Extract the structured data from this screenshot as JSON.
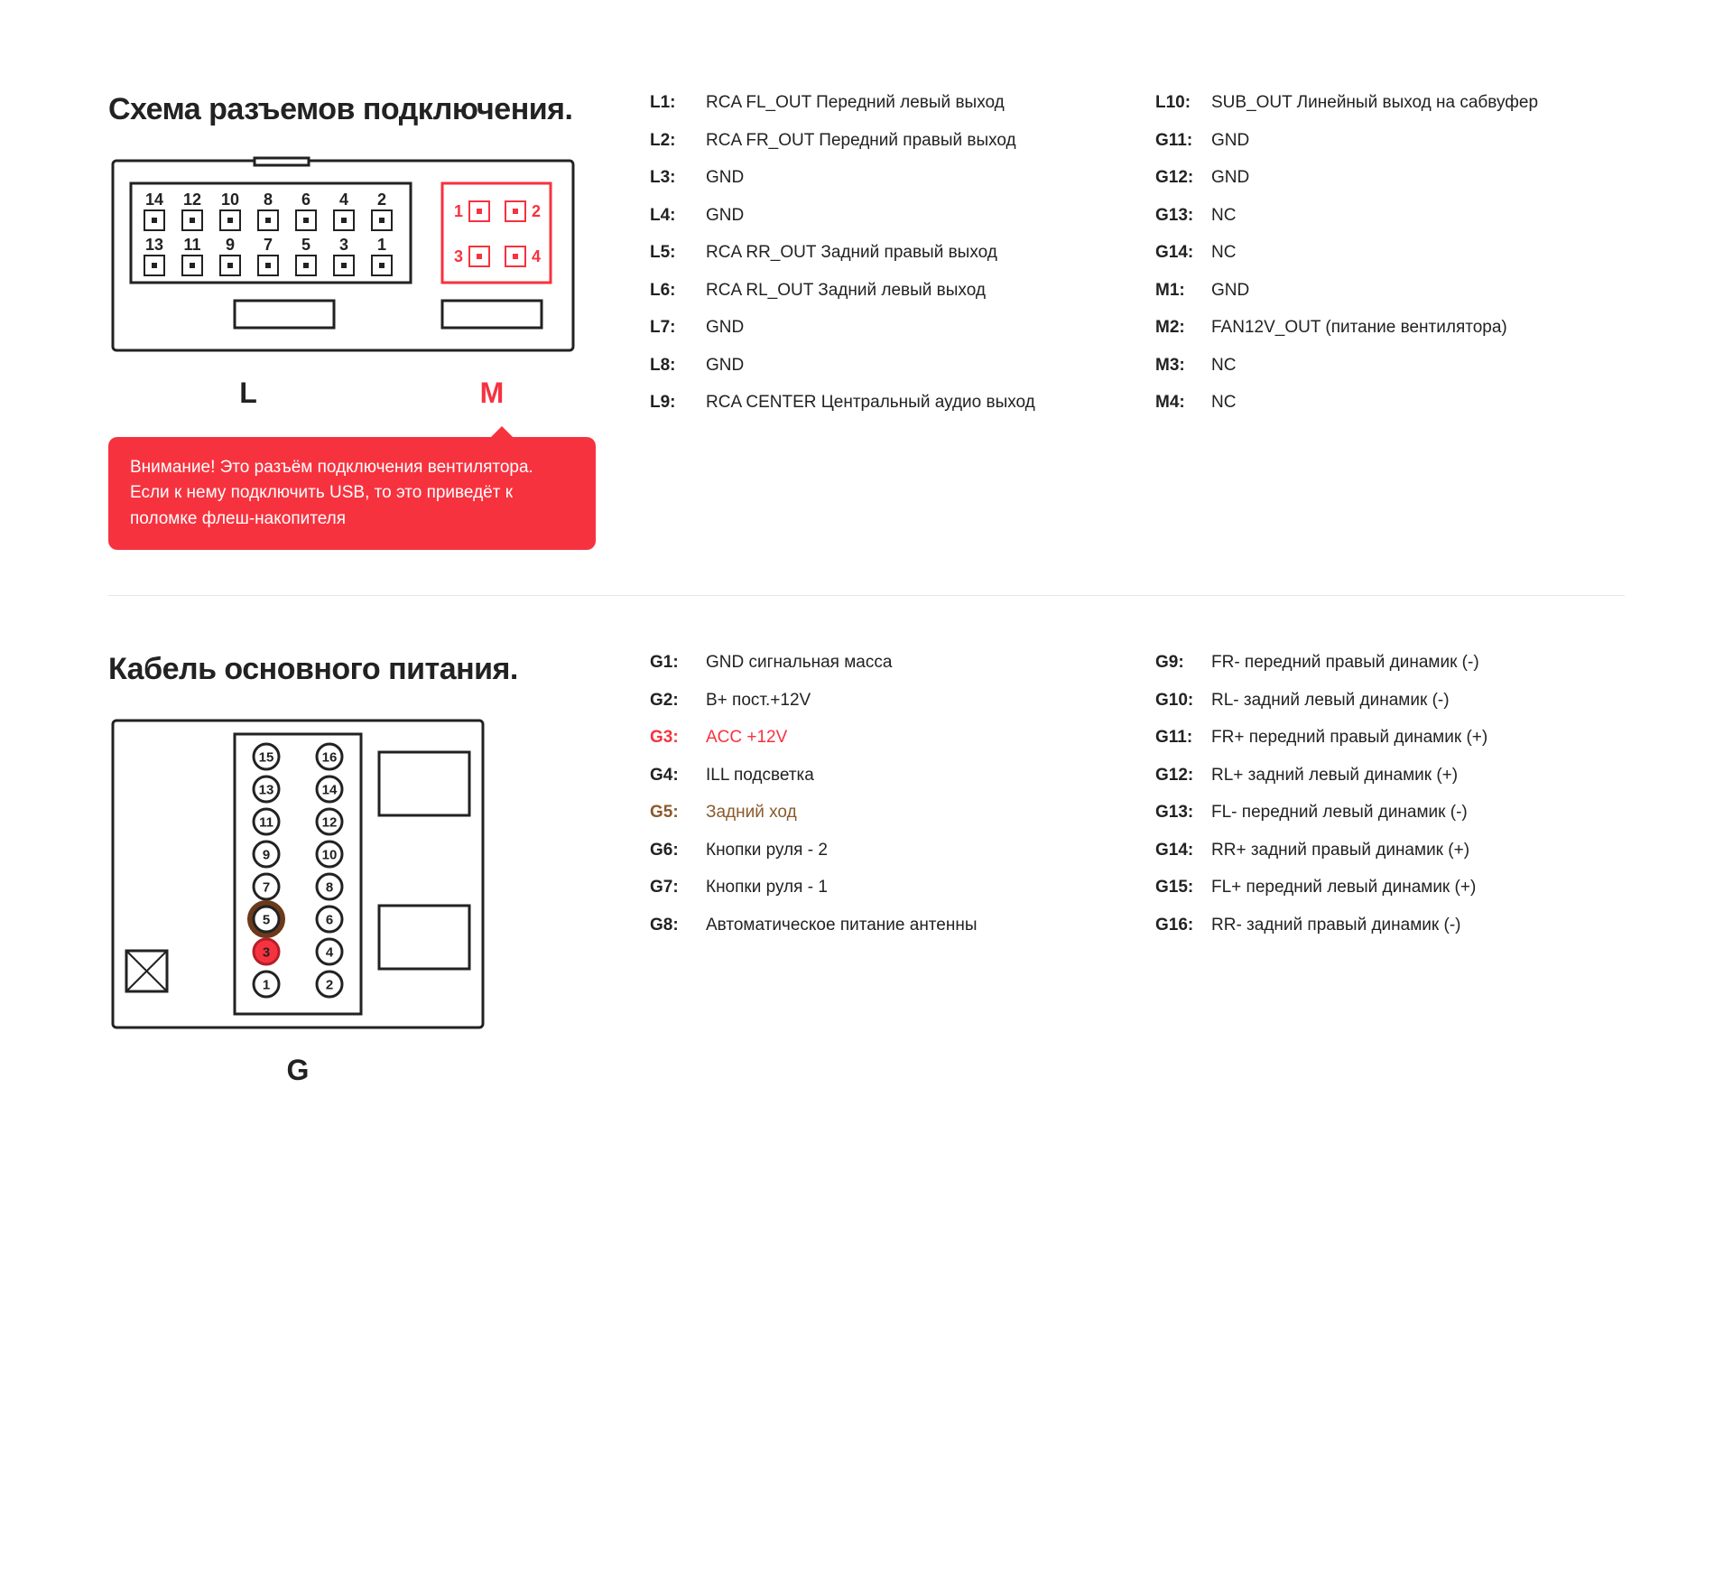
{
  "colors": {
    "accent_red": "#f7323f",
    "accent_brown": "#8a5a2b",
    "text": "#222222",
    "border": "#e5e5e5",
    "white": "#ffffff"
  },
  "section1": {
    "title": "Схема разъемов подключения.",
    "connectorL_label": "L",
    "connectorM_label": "M",
    "warning": "Внимание! Это разъём подключения вентилятора. Если к нему подключить USB, то это приведёт к поломке флеш-накопителя",
    "connectorL_pins": {
      "row1": [
        14,
        12,
        10,
        8,
        6,
        4,
        2
      ],
      "row2": [
        13,
        11,
        9,
        7,
        5,
        3,
        1
      ]
    },
    "connectorM_pins": {
      "row1": [
        1,
        2
      ],
      "row2": [
        3,
        4
      ]
    },
    "col1": [
      {
        "label": "L1:",
        "desc": "RCA FL_OUT Передний левый выход"
      },
      {
        "label": "L2:",
        "desc": "RCA FR_OUT  Передний правый выход"
      },
      {
        "label": "L3:",
        "desc": "GND"
      },
      {
        "label": "L4:",
        "desc": "GND"
      },
      {
        "label": "L5:",
        "desc": "RCA RR_OUT Задний правый выход"
      },
      {
        "label": "L6:",
        "desc": "RCA RL_OUT Задний левый выход"
      },
      {
        "label": "L7:",
        "desc": "GND"
      },
      {
        "label": "L8:",
        "desc": "GND"
      },
      {
        "label": "L9:",
        "desc": "RCA CENTER Центральный аудио выход"
      }
    ],
    "col2": [
      {
        "label": "L10:",
        "desc": "SUB_OUT Линейный выход на сабвуфер"
      },
      {
        "label": "G11:",
        "desc": "GND"
      },
      {
        "label": "G12:",
        "desc": "GND"
      },
      {
        "label": "G13:",
        "desc": "NC"
      },
      {
        "label": "G14:",
        "desc": "NC"
      },
      {
        "label": "M1:",
        "desc": "GND"
      },
      {
        "label": "M2:",
        "desc": "FAN12V_OUT (питание вентилятора)"
      },
      {
        "label": "M3:",
        "desc": "NC"
      },
      {
        "label": "M4:",
        "desc": "NC"
      }
    ]
  },
  "section2": {
    "title": "Кабель основного питания.",
    "connectorG_label": "G",
    "connectorG_pins_rows": [
      [
        15,
        16
      ],
      [
        13,
        14
      ],
      [
        11,
        12
      ],
      [
        9,
        10
      ],
      [
        7,
        8
      ],
      [
        5,
        6
      ],
      [
        3,
        4
      ],
      [
        1,
        2
      ]
    ],
    "highlighted_pins": {
      "red_filled": 3,
      "brown_ring": 5
    },
    "col1": [
      {
        "label": "G1:",
        "desc": "GND сигнальная масса"
      },
      {
        "label": "G2:",
        "desc": "B+ пост.+12V"
      },
      {
        "label": "G3:",
        "desc": "ACC +12V",
        "cls": "red"
      },
      {
        "label": "G4:",
        "desc": "ILL подсветка"
      },
      {
        "label": "G5:",
        "desc": "Задний ход",
        "cls": "brown"
      },
      {
        "label": "G6:",
        "desc": "Кнопки руля - 2"
      },
      {
        "label": "G7:",
        "desc": "Кнопки руля - 1"
      },
      {
        "label": "G8:",
        "desc": "Автоматическое питание антенны"
      }
    ],
    "col2": [
      {
        "label": "G9:",
        "desc": "FR- передний правый динамик (-)"
      },
      {
        "label": "G10:",
        "desc": "RL- задний левый динамик (-)"
      },
      {
        "label": "G11:",
        "desc": "FR+ передний правый динамик (+)"
      },
      {
        "label": "G12:",
        "desc": "RL+ задний левый динамик (+)"
      },
      {
        "label": "G13:",
        "desc": "FL- передний левый динамик (-)"
      },
      {
        "label": "G14:",
        "desc": "RR+ задний правый динамик (+)"
      },
      {
        "label": "G15:",
        "desc": "FL+ передний левый динамик (+)"
      },
      {
        "label": "G16:",
        "desc": "RR- задний правый динамик (-)"
      }
    ]
  }
}
